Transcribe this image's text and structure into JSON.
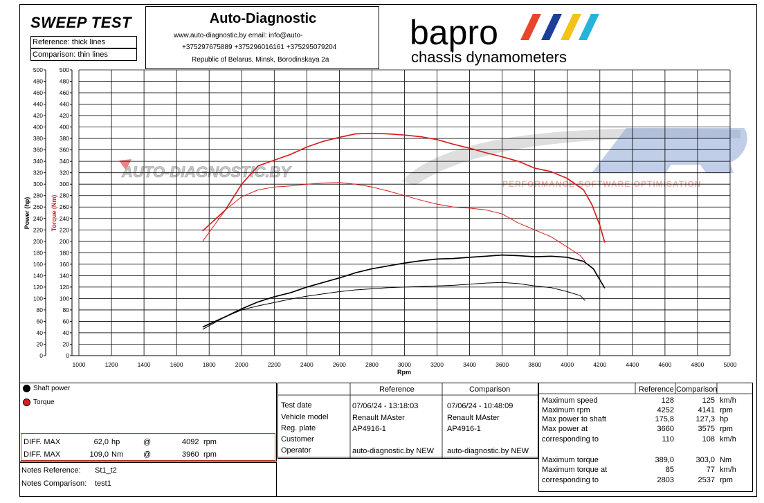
{
  "header": {
    "title": "SWEEP TEST",
    "reference_label": "Reference: thick lines",
    "comparison_label": "Comparison: thin lines",
    "company": "Auto-Diagnostic",
    "contact_line1": "www.auto-diagnostic.by     email: info@auto-",
    "contact_line2": "+375297675889  +375296016161  +375295079204",
    "address": "Republic of Belarus, Minsk, Borodinskaya 2a",
    "brand": "bapro",
    "brand_sub": "chassis dynamometers",
    "watermark1": "AUTO-DIAGNOSTIC.BY",
    "watermark2_sub": "PERFORMANCE SOFTWARE OPTIMISATION"
  },
  "colors": {
    "power": "#000000",
    "torque": "#d81e1e",
    "grid": "#000000"
  },
  "chart_data": {
    "type": "line",
    "xlabel": "Rpm",
    "ylabel_left": "Power (hp)",
    "ylabel_right": "Torque (Nm)",
    "xlim": [
      1000,
      5000
    ],
    "ylim": [
      0,
      500
    ],
    "x_ticks": [
      1000,
      1200,
      1400,
      1600,
      1800,
      2000,
      2200,
      2400,
      2600,
      2800,
      3000,
      3200,
      3400,
      3600,
      3800,
      4000,
      4200,
      4400,
      4600,
      4800,
      5000
    ],
    "y_ticks": [
      0,
      20,
      40,
      60,
      80,
      100,
      120,
      140,
      160,
      180,
      200,
      220,
      240,
      260,
      280,
      300,
      320,
      340,
      360,
      380,
      400,
      420,
      440,
      460,
      480,
      500
    ],
    "series": [
      {
        "name": "Shaft power",
        "kind": "power",
        "line": "thick",
        "x": [
          1760,
          1900,
          2000,
          2100,
          2200,
          2300,
          2400,
          2500,
          2600,
          2700,
          2800,
          2900,
          3000,
          3100,
          3200,
          3300,
          3400,
          3500,
          3600,
          3700,
          3800,
          3900,
          4000,
          4100,
          4160,
          4230
        ],
        "y": [
          50,
          68,
          82,
          94,
          103,
          110,
          120,
          128,
          136,
          145,
          152,
          157,
          162,
          166,
          169,
          170,
          172,
          174,
          176,
          175,
          173,
          174,
          172,
          165,
          152,
          118
        ]
      },
      {
        "name": "Shaft power",
        "kind": "power",
        "line": "thin",
        "x": [
          1760,
          1900,
          2000,
          2100,
          2200,
          2300,
          2400,
          2500,
          2600,
          2700,
          2800,
          2900,
          3000,
          3100,
          3200,
          3300,
          3400,
          3500,
          3600,
          3700,
          3800,
          3900,
          4000,
          4080,
          4110
        ],
        "y": [
          46,
          68,
          80,
          87,
          93,
          99,
          104,
          108,
          112,
          115,
          117,
          119,
          120,
          121,
          122,
          123,
          125,
          127,
          128,
          126,
          122,
          119,
          112,
          105,
          96
        ]
      },
      {
        "name": "Torque",
        "kind": "torque",
        "line": "thick",
        "x": [
          1760,
          1900,
          2000,
          2100,
          2200,
          2300,
          2400,
          2500,
          2600,
          2700,
          2800,
          2900,
          3000,
          3100,
          3200,
          3300,
          3400,
          3500,
          3600,
          3700,
          3800,
          3900,
          4000,
          4100,
          4150,
          4200,
          4230
        ],
        "y": [
          218,
          255,
          300,
          332,
          342,
          352,
          365,
          375,
          382,
          388,
          389,
          388,
          386,
          383,
          378,
          370,
          363,
          355,
          348,
          340,
          328,
          322,
          310,
          290,
          265,
          228,
          198
        ]
      },
      {
        "name": "Torque",
        "kind": "torque",
        "line": "thin",
        "x": [
          1760,
          1900,
          2000,
          2100,
          2200,
          2300,
          2400,
          2500,
          2600,
          2700,
          2800,
          2900,
          3000,
          3100,
          3200,
          3300,
          3400,
          3500,
          3600,
          3700,
          3800,
          3900,
          4000,
          4080,
          4110
        ],
        "y": [
          200,
          255,
          278,
          290,
          295,
          297,
          300,
          302,
          303,
          300,
          295,
          288,
          280,
          272,
          265,
          260,
          258,
          255,
          248,
          232,
          220,
          208,
          190,
          175,
          165
        ]
      }
    ]
  },
  "legend": {
    "power": "Shaft power",
    "torque": "Torque"
  },
  "diff": [
    {
      "label": "DIFF. MAX",
      "value": "62,0",
      "unit": "hp",
      "at": "@",
      "rpm": "4092",
      "rpm_unit": "rpm"
    },
    {
      "label": "DIFF. MAX",
      "value": "109,0",
      "unit": "Nm",
      "at": "@",
      "rpm": "3960",
      "rpm_unit": "rpm"
    }
  ],
  "notes": [
    {
      "label": "Notes Reference:",
      "value": "St1_t2"
    },
    {
      "label": "Notes Comparison:",
      "value": "test1"
    }
  ],
  "info": {
    "col_reference": "Reference",
    "col_comparison": "Comparison",
    "rows": [
      {
        "label": "Test date",
        "ref": "07/06/24 - 13:18:03",
        "cmp": "07/06/24 - 10:48:09"
      },
      {
        "label": "Vehicle model",
        "ref": "Renault MAster",
        "cmp": "Renault MAster"
      },
      {
        "label": "Reg. plate",
        "ref": "AP4916-1",
        "cmp": "AP4916-1"
      },
      {
        "label": "Customer",
        "ref": "",
        "cmp": ""
      },
      {
        "label": "Operator",
        "ref": "auto-diagnostic.by NEW",
        "cmp": "auto-diagnostic.by NEW"
      }
    ]
  },
  "maxima": {
    "col_reference": "Reference",
    "col_comparison": "Comparison",
    "rows": [
      {
        "label": "Maximum speed",
        "ref": "128",
        "cmp": "125",
        "unit": "km/h"
      },
      {
        "label": "Maximum rpm",
        "ref": "4252",
        "cmp": "4141",
        "unit": "rpm"
      },
      {
        "label": "Max power to shaft",
        "ref": "175,8",
        "cmp": "127,3",
        "unit": "hp"
      },
      {
        "label": "Max power at",
        "ref": "3660",
        "cmp": "3575",
        "unit": "rpm"
      },
      {
        "label": "corresponding to",
        "ref": "110",
        "cmp": "108",
        "unit": "km/h"
      },
      {
        "label": "Maximum torque",
        "ref": "389,0",
        "cmp": "303,0",
        "unit": "Nm"
      },
      {
        "label": "Maximum torque at",
        "ref": "85",
        "cmp": "77",
        "unit": "km/h"
      },
      {
        "label": "corresponding to",
        "ref": "2803",
        "cmp": "2537",
        "unit": "rpm"
      }
    ]
  }
}
